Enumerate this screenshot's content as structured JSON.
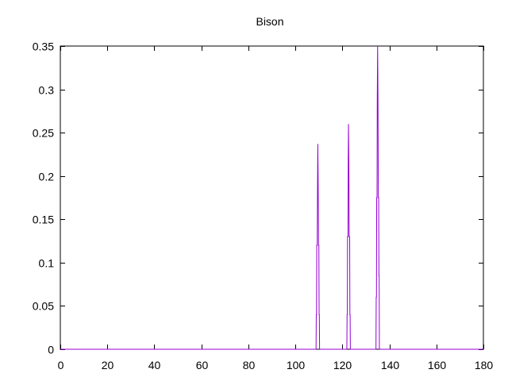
{
  "chart_data": {
    "type": "line",
    "title": "Bison",
    "xlabel": "",
    "ylabel": "",
    "xlim": [
      0,
      180
    ],
    "ylim": [
      0,
      0.35
    ],
    "xticks": [
      "0",
      "20",
      "40",
      "60",
      "80",
      "100",
      "120",
      "140",
      "160",
      "180"
    ],
    "yticks": [
      "0",
      "0.05",
      "0.1",
      "0.15",
      "0.2",
      "0.25",
      "0.3",
      "0.35"
    ],
    "grid": false,
    "series": [
      {
        "color": "#9400d3",
        "points": [
          [
            0,
            0
          ],
          [
            108.8,
            0
          ],
          [
            108.9,
            0.04
          ],
          [
            109.0,
            0.04
          ],
          [
            109.1,
            0.12
          ],
          [
            109.3,
            0.12
          ],
          [
            109.45,
            0.195
          ],
          [
            109.55,
            0.237
          ],
          [
            109.7,
            0.195
          ],
          [
            109.85,
            0.12
          ],
          [
            110.0,
            0.12
          ],
          [
            110.1,
            0.04
          ],
          [
            110.2,
            0.04
          ],
          [
            110.3,
            0
          ],
          [
            121.9,
            0
          ],
          [
            122.0,
            0.04
          ],
          [
            122.1,
            0.04
          ],
          [
            122.2,
            0.13
          ],
          [
            122.4,
            0.13
          ],
          [
            122.5,
            0.215
          ],
          [
            122.6,
            0.26
          ],
          [
            122.75,
            0.215
          ],
          [
            122.9,
            0.13
          ],
          [
            123.1,
            0.13
          ],
          [
            123.2,
            0.04
          ],
          [
            123.3,
            0.04
          ],
          [
            123.4,
            0
          ],
          [
            134.3,
            0
          ],
          [
            134.4,
            0.06
          ],
          [
            134.5,
            0.06
          ],
          [
            134.6,
            0.175
          ],
          [
            134.75,
            0.175
          ],
          [
            134.85,
            0.29
          ],
          [
            135.0,
            0.35
          ],
          [
            135.15,
            0.29
          ],
          [
            135.3,
            0.175
          ],
          [
            135.45,
            0.175
          ],
          [
            135.55,
            0.085
          ],
          [
            135.65,
            0.085
          ],
          [
            135.75,
            0
          ],
          [
            180,
            0
          ]
        ]
      }
    ]
  }
}
